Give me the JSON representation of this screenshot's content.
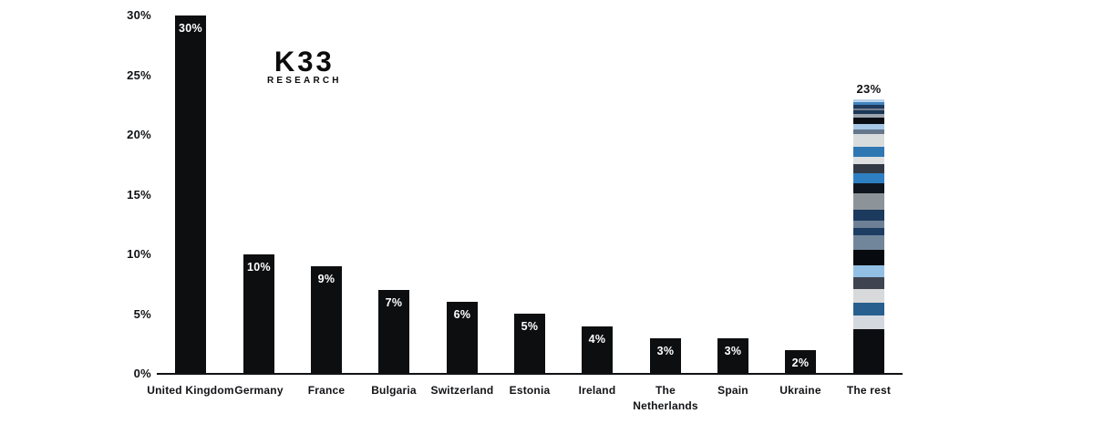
{
  "logo": {
    "line1": "K33",
    "line2": "RESEARCH"
  },
  "colors": {
    "background": "#ffffff",
    "bar": "#0d0e10",
    "axis": "#111215",
    "text": "#111215",
    "bar_value_text": "#ffffff"
  },
  "chart_data": {
    "type": "bar",
    "title": "",
    "xlabel": "",
    "ylabel": "",
    "categories": [
      "United Kingdom",
      "Germany",
      "France",
      "Bulgaria",
      "Switzerland",
      "Estonia",
      "Ireland",
      "The Netherlands",
      "Spain",
      "Ukraine",
      "The rest"
    ],
    "values": [
      30,
      10,
      9,
      7,
      6,
      5,
      4,
      3,
      3,
      2,
      23
    ],
    "bar_labels": [
      "30%",
      "10%",
      "9%",
      "7%",
      "6%",
      "5%",
      "4%",
      "3%",
      "3%",
      "2%",
      "23%"
    ],
    "ylim": [
      0,
      30
    ],
    "yticks": [
      "0%",
      "5%",
      "10%",
      "15%",
      "20%",
      "25%",
      "30%"
    ],
    "grid": false,
    "legend": false,
    "stacked_category": "The rest",
    "the_rest_segments": [
      {
        "color": "#b9d2ea",
        "h": 3
      },
      {
        "color": "#3f83bd",
        "h": 3
      },
      {
        "color": "#20395c",
        "h": 4
      },
      {
        "color": "#76818d",
        "h": 2
      },
      {
        "color": "#1c3756",
        "h": 4
      },
      {
        "color": "#9ba4ac",
        "h": 4
      },
      {
        "color": "#0a0d12",
        "h": 7
      },
      {
        "color": "#a7c8e6",
        "h": 6
      },
      {
        "color": "#66778c",
        "h": 5
      },
      {
        "color": "#d9dcdd",
        "h": 14
      },
      {
        "color": "#2e77b2",
        "h": 10
      },
      {
        "color": "#dddfe0",
        "h": 8
      },
      {
        "color": "#333a45",
        "h": 10
      },
      {
        "color": "#2f80c2",
        "h": 11
      },
      {
        "color": "#10161f",
        "h": 11
      },
      {
        "color": "#8d9499",
        "h": 18
      },
      {
        "color": "#1b3a5e",
        "h": 12
      },
      {
        "color": "#6e8095",
        "h": 8
      },
      {
        "color": "#1e3d63",
        "h": 8
      },
      {
        "color": "#72869b",
        "h": 15
      },
      {
        "color": "#070a0e",
        "h": 17
      },
      {
        "color": "#92bfe4",
        "h": 13
      },
      {
        "color": "#3e4550",
        "h": 13
      },
      {
        "color": "#d7d9da",
        "h": 15
      },
      {
        "color": "#27608e",
        "h": 14
      },
      {
        "color": "#d4d9e0",
        "h": 15
      },
      {
        "color": "#0b0d10",
        "h": 48
      }
    ]
  }
}
